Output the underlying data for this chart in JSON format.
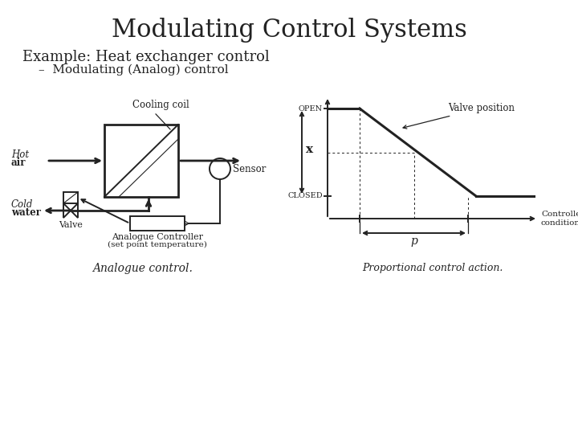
{
  "title": "Modulating Control Systems",
  "title_fontsize": 22,
  "subtitle1": "Example: Heat exchanger control",
  "subtitle1_fontsize": 13,
  "subtitle2": "–  Modulating (Analog) control",
  "subtitle2_fontsize": 11,
  "bg_color": "#ffffff",
  "text_color": "#111111",
  "diagram_color": "#222222",
  "labels": {
    "hot": "Hot",
    "air": "air",
    "cold": "Cold",
    "water": "water",
    "cooling_coil": "Cooling coil",
    "sensor": "Sensor",
    "valve": "Valve",
    "analogue_controller": "Analogue Controller",
    "set_point": "(set point temperature)",
    "analogue_control": "Analogue control.",
    "open": "OPEN",
    "closed": "CLOSED",
    "x_label": "x",
    "valve_position": "Valve position",
    "controlled_condition": "Controlled\ncondition",
    "p_label": "p",
    "proportional_control": "Proportional control action."
  },
  "layout": {
    "fig_w": 7.2,
    "fig_h": 5.4,
    "dpi": 100
  }
}
